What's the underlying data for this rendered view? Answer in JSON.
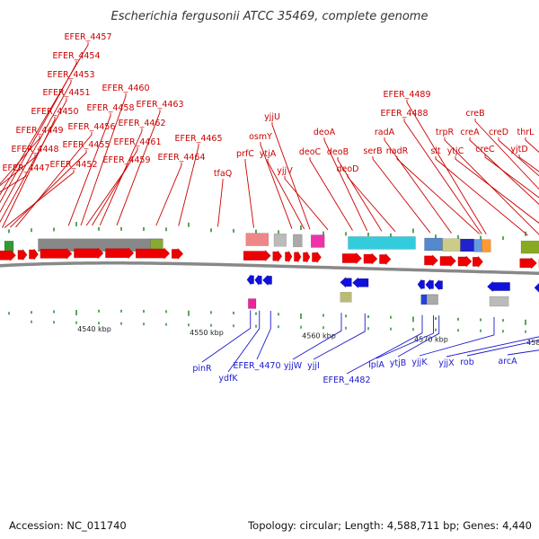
{
  "title": "Escherichia fergusonii ATCC 35469, complete genome",
  "footer": {
    "accession": "Accession: NC_011740",
    "summary": "Topology: circular; Length: 4,588,711 bp; Genes: 4,440"
  },
  "scale": {
    "unit": "kbp",
    "ticks": [
      {
        "pos": 4540,
        "label": "4540 kbp"
      },
      {
        "pos": 4550,
        "label": "4550 kbp"
      },
      {
        "pos": 4560,
        "label": "4560 kbp"
      },
      {
        "pos": 4570,
        "label": "4570 kbp"
      },
      {
        "pos": 4580,
        "label": "4580 kbp"
      }
    ]
  },
  "colors": {
    "forward_gene": "#ee0000",
    "reverse_gene": "#1111dd",
    "top_label": "#cc0000",
    "bottom_label": "#1a1acc",
    "backbone": "#888888",
    "tick_mark": "#228822"
  },
  "top_labels": [
    {
      "text": "EFER_4457",
      "gene": 4531.4
    },
    {
      "text": "EFER_4454",
      "gene": 4531.9
    },
    {
      "text": "EFER_4453",
      "gene": 4532.4
    },
    {
      "text": "EFER_4451",
      "gene": 4532.9
    },
    {
      "text": "EFER_4460",
      "gene": 4540.4
    },
    {
      "text": "EFER_4450",
      "gene": 4533.4
    },
    {
      "text": "EFER_4458",
      "gene": 4539.3
    },
    {
      "text": "EFER_4463",
      "gene": 4543.6
    },
    {
      "text": "EFER_4456",
      "gene": 4534.6
    },
    {
      "text": "EFER_4462",
      "gene": 4542.1
    },
    {
      "text": "EFER_4449",
      "gene": 4529.6
    },
    {
      "text": "EFER_4461",
      "gene": 4541.4
    },
    {
      "text": "EFER_4455",
      "gene": 4534.1
    },
    {
      "text": "EFER_4465",
      "gene": 4549.1
    },
    {
      "text": "EFER_4448",
      "gene": 4528.1
    },
    {
      "text": "EFER_4459",
      "gene": 4540.9
    },
    {
      "text": "EFER_4464",
      "gene": 4547.1
    },
    {
      "text": "EFER_4452",
      "gene": 4533.6
    },
    {
      "text": "EFER_4447",
      "gene": 4527.2
    },
    {
      "text": "tfaQ",
      "gene": 4552.6
    },
    {
      "text": "yjjU",
      "gene": 4560.8
    },
    {
      "text": "osmY",
      "gene": 4559.2
    },
    {
      "text": "prfC",
      "gene": 4555.8
    },
    {
      "text": "ytjA",
      "gene": 4560.3
    },
    {
      "text": "yjjV",
      "gene": 4562.4
    },
    {
      "text": "deoA",
      "gene": 4565.9
    },
    {
      "text": "deoC",
      "gene": 4564.6
    },
    {
      "text": "deoB",
      "gene": 4567.2
    },
    {
      "text": "deoD",
      "gene": 4568.4
    },
    {
      "text": "EFER_4489",
      "gene": 4576.5
    },
    {
      "text": "EFER_4488",
      "gene": 4576.1
    },
    {
      "text": "radA",
      "gene": 4573.4
    },
    {
      "text": "serB",
      "gene": 4571.5
    },
    {
      "text": "nadR",
      "gene": 4575.9
    },
    {
      "text": "creB",
      "gene": 4585.2
    },
    {
      "text": "trpR",
      "gene": 4581.3
    },
    {
      "text": "creA",
      "gene": 4584.3
    },
    {
      "text": "creD",
      "gene": 4587.4
    },
    {
      "text": "thrL",
      "gene": 4589.8
    },
    {
      "text": "slt",
      "gene": 4580.2
    },
    {
      "text": "ytjC",
      "gene": 4582.7
    },
    {
      "text": "creC",
      "gene": 4585.9
    },
    {
      "text": "yjtD",
      "gene": 4589.4
    }
  ],
  "bottom_labels": [
    {
      "text": "pinR",
      "gene": 4555.5
    },
    {
      "text": "ydfK",
      "gene": 4556.3
    },
    {
      "text": "EFER_4470",
      "gene": 4557.3
    },
    {
      "text": "yjjW",
      "gene": 4563.6
    },
    {
      "text": "yjjI",
      "gene": 4565.7
    },
    {
      "text": "EFER_4482",
      "gene": 4570.8
    },
    {
      "text": "lplA",
      "gene": 4571.8
    },
    {
      "text": "ytjB",
      "gene": 4572.3
    },
    {
      "text": "yjjK",
      "gene": 4577.2
    },
    {
      "text": "yjjX",
      "gene": 4581.4
    },
    {
      "text": "rob",
      "gene": 4582.7
    },
    {
      "text": "arcA",
      "gene": 4588.2
    }
  ],
  "forward_genes": [
    {
      "start": 4523.0,
      "end": 4525.0
    },
    {
      "start": 4525.0,
      "end": 4526.3
    },
    {
      "start": 4527.0,
      "end": 4529.0
    },
    {
      "start": 4529.2,
      "end": 4531.6
    },
    {
      "start": 4531.8,
      "end": 4533.0
    },
    {
      "start": 4533.1,
      "end": 4534.6
    },
    {
      "start": 4534.8,
      "end": 4535.6
    },
    {
      "start": 4535.8,
      "end": 4536.6
    },
    {
      "start": 4536.8,
      "end": 4539.6
    },
    {
      "start": 4539.8,
      "end": 4542.4
    },
    {
      "start": 4542.6,
      "end": 4545.1
    },
    {
      "start": 4545.3,
      "end": 4548.3
    },
    {
      "start": 4548.5,
      "end": 4549.5
    },
    {
      "start": 4554.9,
      "end": 4557.3
    },
    {
      "start": 4557.5,
      "end": 4558.3
    },
    {
      "start": 4558.6,
      "end": 4559.2
    },
    {
      "start": 4559.4,
      "end": 4560.0
    },
    {
      "start": 4560.2,
      "end": 4560.8
    },
    {
      "start": 4561.0,
      "end": 4561.8
    },
    {
      "start": 4563.7,
      "end": 4565.4
    },
    {
      "start": 4565.6,
      "end": 4566.8
    },
    {
      "start": 4567.0,
      "end": 4568.0
    },
    {
      "start": 4571.0,
      "end": 4572.2
    },
    {
      "start": 4572.4,
      "end": 4573.8
    },
    {
      "start": 4574.0,
      "end": 4575.2
    },
    {
      "start": 4575.3,
      "end": 4576.2
    },
    {
      "start": 4579.5,
      "end": 4581.0
    },
    {
      "start": 4581.2,
      "end": 4582.0
    },
    {
      "start": 4582.6,
      "end": 4583.4
    },
    {
      "start": 4583.8,
      "end": 4585.0
    },
    {
      "start": 4585.2,
      "end": 4586.4
    },
    {
      "start": 4586.6,
      "end": 4587.2
    },
    {
      "start": 4588.0,
      "end": 4590.5
    }
  ],
  "reverse_genes": [
    {
      "start": 4555.2,
      "end": 4555.8
    },
    {
      "start": 4555.9,
      "end": 4556.5
    },
    {
      "start": 4556.6,
      "end": 4557.4
    },
    {
      "start": 4563.5,
      "end": 4564.5
    },
    {
      "start": 4564.6,
      "end": 4566.0
    },
    {
      "start": 4570.4,
      "end": 4571.0
    },
    {
      "start": 4571.1,
      "end": 4571.8
    },
    {
      "start": 4571.9,
      "end": 4572.6
    },
    {
      "start": 4576.6,
      "end": 4578.6
    },
    {
      "start": 4580.8,
      "end": 4581.6
    },
    {
      "start": 4582.6,
      "end": 4583.4
    },
    {
      "start": 4587.7,
      "end": 4588.5
    }
  ],
  "top_blocks": [
    {
      "start": 4524.4,
      "end": 4526.4,
      "row": 1,
      "color": "#cccccc"
    },
    {
      "start": 4531.7,
      "end": 4532.1,
      "row": 1,
      "color": "#777777"
    },
    {
      "start": 4533.6,
      "end": 4534.4,
      "row": 1,
      "color": "#339933"
    },
    {
      "start": 4536.6,
      "end": 4547.7,
      "row": 1,
      "color": "#888888"
    },
    {
      "start": 4546.6,
      "end": 4547.7,
      "row": 1,
      "color": "#88aa33"
    },
    {
      "start": 4555.1,
      "end": 4557.1,
      "row": 0,
      "color": "#ee8888"
    },
    {
      "start": 4557.6,
      "end": 4558.7,
      "row": 0,
      "color": "#bbbbbb"
    },
    {
      "start": 4559.3,
      "end": 4560.1,
      "row": 0,
      "color": "#aaaaaa"
    },
    {
      "start": 4560.9,
      "end": 4562.1,
      "row": 0,
      "color": "#ee33aa"
    },
    {
      "start": 4564.2,
      "end": 4570.2,
      "row": 0,
      "color": "#33ccdd"
    },
    {
      "start": 4571.0,
      "end": 4572.6,
      "row": 0,
      "color": "#5588cc"
    },
    {
      "start": 4572.6,
      "end": 4574.2,
      "row": 0,
      "color": "#cccc88"
    },
    {
      "start": 4574.2,
      "end": 4575.4,
      "row": 0,
      "color": "#2222cc"
    },
    {
      "start": 4575.4,
      "end": 4576.1,
      "row": 0,
      "color": "#6699dd"
    },
    {
      "start": 4576.1,
      "end": 4576.9,
      "row": 0,
      "color": "#ff9933"
    },
    {
      "start": 4579.6,
      "end": 4581.9,
      "row": 0,
      "color": "#88aa22"
    },
    {
      "start": 4581.9,
      "end": 4583.5,
      "row": 0,
      "color": "#33cccc"
    },
    {
      "start": 4583.8,
      "end": 4584.6,
      "row": 0,
      "color": "#ff9933"
    },
    {
      "start": 4584.6,
      "end": 4587.2,
      "row": 0,
      "color": "#55cc55"
    },
    {
      "start": 4588.3,
      "end": 4589.3,
      "row": 0,
      "color": "#ee8888"
    },
    {
      "start": 4589.6,
      "end": 4591.0,
      "row": 0,
      "color": "#5588bb"
    }
  ],
  "bottom_blocks": [
    {
      "start": 4555.3,
      "end": 4556.0,
      "row": 1,
      "color": "#ee2299"
    },
    {
      "start": 4563.5,
      "end": 4564.5,
      "row": 0,
      "color": "#bbbb77"
    },
    {
      "start": 4570.7,
      "end": 4572.2,
      "row": 0,
      "color": "#2244dd"
    },
    {
      "start": 4571.2,
      "end": 4572.2,
      "row": 0,
      "color": "#aaaaaa"
    },
    {
      "start": 4576.8,
      "end": 4578.5,
      "row": 0,
      "color": "#bbbbbb"
    },
    {
      "start": 4581.3,
      "end": 4581.9,
      "row": 0,
      "color": "#555555"
    },
    {
      "start": 4587.8,
      "end": 4588.6,
      "row": 0,
      "color": "#ff9933"
    },
    {
      "start": 4587.8,
      "end": 4588.6,
      "row": 1,
      "color": "#33aa55"
    }
  ]
}
